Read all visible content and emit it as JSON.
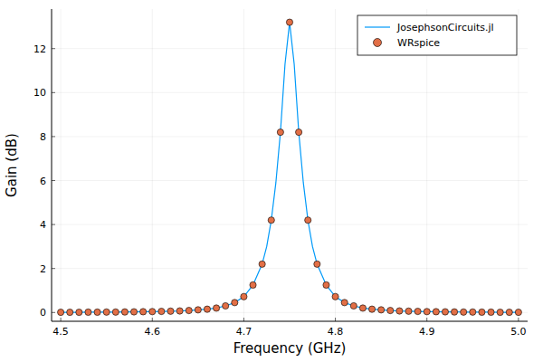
{
  "chart_data": {
    "type": "line",
    "x_label": "Frequency (GHz)",
    "y_label": "Gain (dB)",
    "xlim": [
      4.49,
      5.01
    ],
    "ylim": [
      -0.4,
      13.8
    ],
    "xticks": [
      4.5,
      4.6,
      4.7,
      4.8,
      4.9,
      {
        "value": 5,
        "label": "5.0"
      }
    ],
    "yticks": [
      0,
      2,
      4,
      6,
      8,
      10,
      12
    ],
    "grid": true,
    "legend": "top-right",
    "series": [
      {
        "name": "JosephsonCircuits.jl",
        "type": "line",
        "color": "#009af9",
        "line_style": "solid",
        "x": [
          4.5,
          4.51,
          4.52,
          4.53,
          4.54,
          4.55,
          4.56,
          4.57,
          4.58,
          4.59,
          4.6,
          4.61,
          4.62,
          4.63,
          4.64,
          4.65,
          4.66,
          4.67,
          4.68,
          4.69,
          4.7,
          4.71,
          4.72,
          4.725,
          4.73,
          4.735,
          4.74,
          4.745,
          4.75,
          4.755,
          4.76,
          4.765,
          4.77,
          4.775,
          4.78,
          4.79,
          4.8,
          4.81,
          4.82,
          4.83,
          4.84,
          4.85,
          4.86,
          4.87,
          4.88,
          4.89,
          4.9,
          4.91,
          4.92,
          4.93,
          4.94,
          4.95,
          4.96,
          4.97,
          4.98,
          4.99,
          5.0
        ],
        "values": [
          0.01,
          0.01,
          0.01,
          0.015,
          0.015,
          0.02,
          0.02,
          0.025,
          0.03,
          0.035,
          0.04,
          0.05,
          0.06,
          0.07,
          0.09,
          0.12,
          0.15,
          0.2,
          0.3,
          0.45,
          0.72,
          1.25,
          2.2,
          3.0,
          4.2,
          5.9,
          8.2,
          11.3,
          13.2,
          11.3,
          8.2,
          5.9,
          4.2,
          3.0,
          2.2,
          1.25,
          0.72,
          0.45,
          0.3,
          0.2,
          0.15,
          0.12,
          0.09,
          0.07,
          0.06,
          0.05,
          0.04,
          0.035,
          0.03,
          0.025,
          0.02,
          0.02,
          0.015,
          0.015,
          0.01,
          0.01,
          0.01
        ]
      },
      {
        "name": "WRspice",
        "type": "scatter",
        "color": "#e26f46",
        "marker": "circle",
        "x": [
          4.5,
          4.51,
          4.52,
          4.53,
          4.54,
          4.55,
          4.56,
          4.57,
          4.58,
          4.59,
          4.6,
          4.61,
          4.62,
          4.63,
          4.64,
          4.65,
          4.66,
          4.67,
          4.68,
          4.69,
          4.7,
          4.71,
          4.72,
          4.73,
          4.74,
          4.75,
          4.76,
          4.77,
          4.78,
          4.79,
          4.8,
          4.81,
          4.82,
          4.83,
          4.84,
          4.85,
          4.86,
          4.87,
          4.88,
          4.89,
          4.9,
          4.91,
          4.92,
          4.93,
          4.94,
          4.95,
          4.96,
          4.97,
          4.98,
          4.99,
          5.0
        ],
        "values": [
          0.01,
          0.01,
          0.01,
          0.015,
          0.015,
          0.02,
          0.02,
          0.025,
          0.03,
          0.035,
          0.04,
          0.05,
          0.06,
          0.07,
          0.09,
          0.12,
          0.15,
          0.2,
          0.3,
          0.45,
          0.72,
          1.25,
          2.2,
          4.2,
          8.2,
          13.2,
          8.2,
          4.2,
          2.2,
          1.25,
          0.72,
          0.45,
          0.3,
          0.2,
          0.15,
          0.12,
          0.09,
          0.07,
          0.06,
          0.05,
          0.04,
          0.035,
          0.03,
          0.025,
          0.02,
          0.02,
          0.015,
          0.015,
          0.01,
          0.01,
          0.01
        ]
      }
    ]
  }
}
